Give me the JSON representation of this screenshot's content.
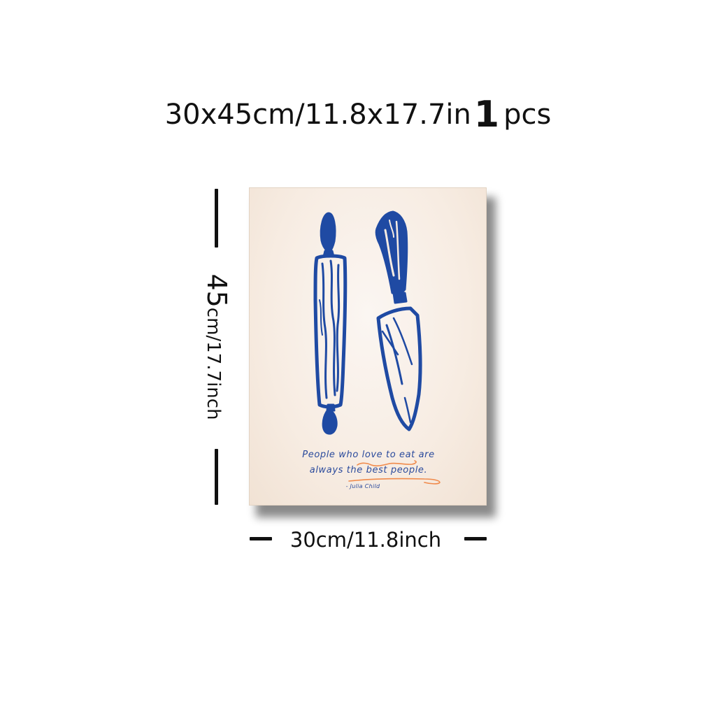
{
  "headline": {
    "dimensions": "30x45cm/11.8x17.7in",
    "quantity": "1",
    "unit": "pcs"
  },
  "poster": {
    "quote_line1": "People who love to eat are",
    "quote_line2": "always the best people.",
    "author": "- Julia Child",
    "colors": {
      "ink": "#1f4aa3",
      "paper": "#f7ece2",
      "accent": "#f08a4b"
    }
  },
  "height_marker": {
    "number": "45",
    "label": "cm/17.7inch"
  },
  "width_marker": {
    "label": "30cm/11.8inch"
  }
}
